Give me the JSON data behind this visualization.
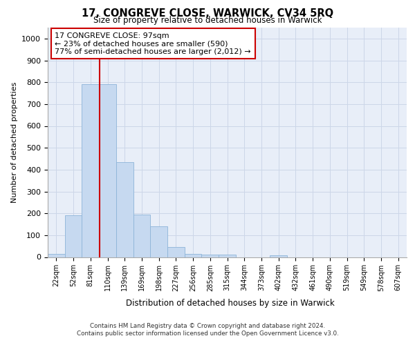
{
  "title": "17, CONGREVE CLOSE, WARWICK, CV34 5RQ",
  "subtitle": "Size of property relative to detached houses in Warwick",
  "xlabel": "Distribution of detached houses by size in Warwick",
  "ylabel": "Number of detached properties",
  "bar_labels": [
    "22sqm",
    "52sqm",
    "81sqm",
    "110sqm",
    "139sqm",
    "169sqm",
    "198sqm",
    "227sqm",
    "256sqm",
    "285sqm",
    "315sqm",
    "344sqm",
    "373sqm",
    "402sqm",
    "432sqm",
    "461sqm",
    "490sqm",
    "519sqm",
    "549sqm",
    "578sqm",
    "607sqm"
  ],
  "bar_values": [
    15,
    190,
    790,
    790,
    435,
    195,
    140,
    45,
    15,
    10,
    10,
    0,
    0,
    8,
    0,
    0,
    0,
    0,
    0,
    0,
    0
  ],
  "bar_color": "#c6d9f0",
  "bar_edge_color": "#8db4d8",
  "vline_x": 2.55,
  "vline_color": "#cc0000",
  "annotation_text": "17 CONGREVE CLOSE: 97sqm\n← 23% of detached houses are smaller (590)\n77% of semi-detached houses are larger (2,012) →",
  "annotation_box_color": "#ffffff",
  "annotation_box_edge": "#cc0000",
  "ylim": [
    0,
    1050
  ],
  "yticks": [
    0,
    100,
    200,
    300,
    400,
    500,
    600,
    700,
    800,
    900,
    1000
  ],
  "grid_color": "#ccd6e8",
  "bg_color": "#e8eef8",
  "footer": "Contains HM Land Registry data © Crown copyright and database right 2024.\nContains public sector information licensed under the Open Government Licence v3.0."
}
